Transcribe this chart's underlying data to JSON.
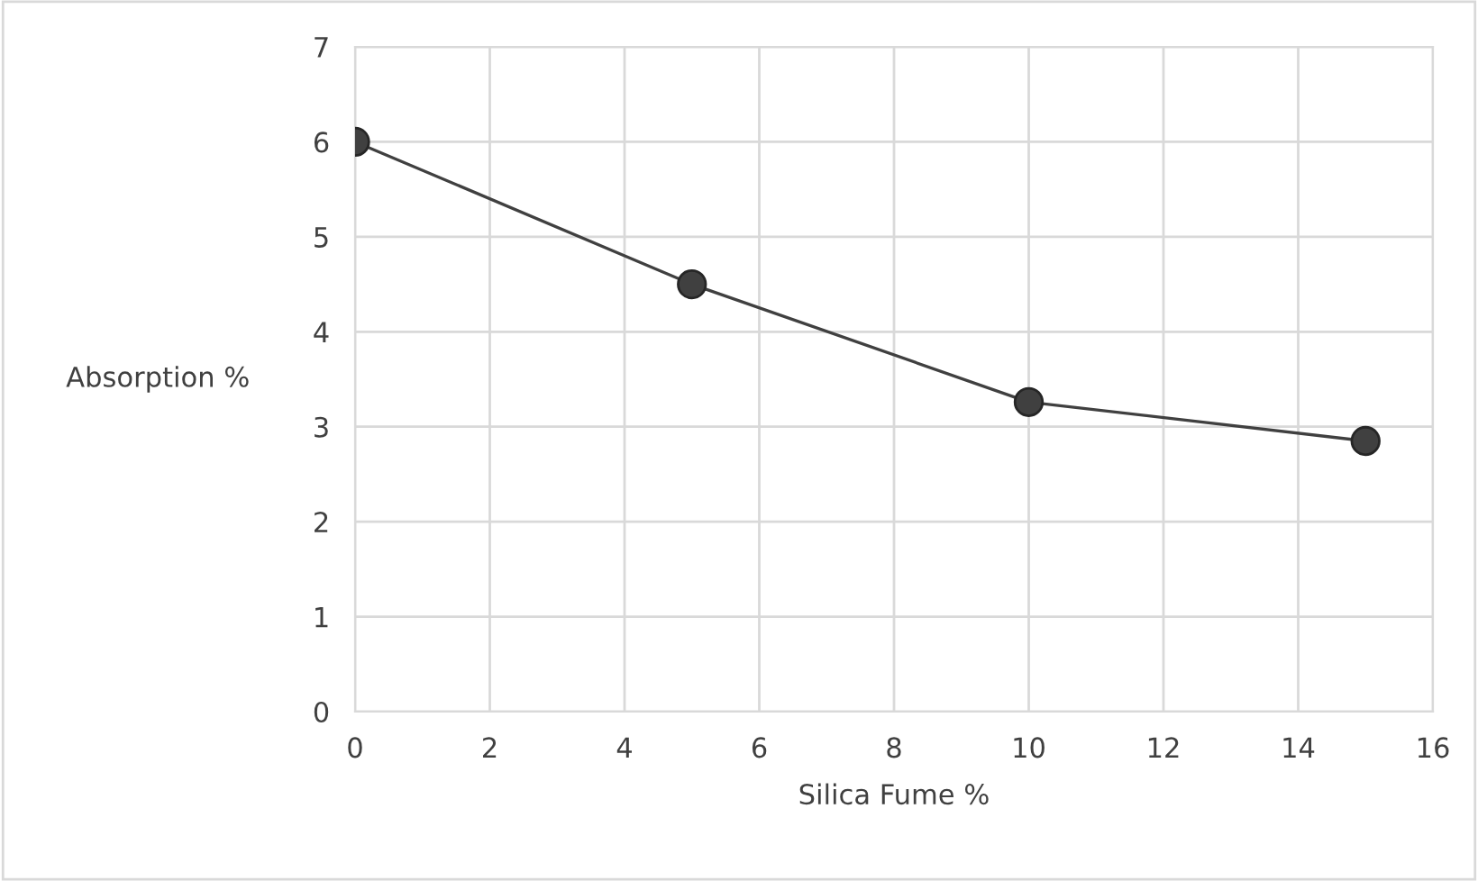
{
  "chart_data": {
    "type": "line",
    "xlabel": "Silica Fume %",
    "ylabel": "Absorption %",
    "x": [
      0,
      5,
      10,
      15
    ],
    "series": [
      {
        "color": "#404040",
        "values": [
          6.0,
          4.5,
          3.26,
          2.85
        ]
      }
    ],
    "xlim": [
      0,
      16
    ],
    "xticks": [
      0,
      2,
      4,
      6,
      8,
      10,
      12,
      14,
      16
    ],
    "ylim": [
      0,
      7
    ],
    "yticks": [
      0,
      1,
      2,
      3,
      4,
      5,
      6,
      7
    ],
    "grid": true,
    "marker": "circle",
    "line_style": "solid"
  }
}
